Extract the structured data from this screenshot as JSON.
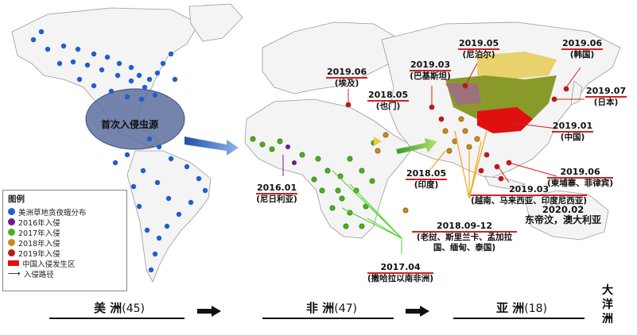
{
  "origin_label": "首次入侵虫源",
  "labels": {
    "egypt": {
      "date": "2019.06",
      "country": "(埃及)"
    },
    "yemen": {
      "date": "2018.05",
      "country": "(也门)"
    },
    "pakistan": {
      "date": "2019.03",
      "country": "(巴基斯坦)"
    },
    "nepal": {
      "date": "2019.05",
      "country": "(尼泊尔)"
    },
    "korea": {
      "date": "2019.06",
      "country": "(韩国)"
    },
    "japan": {
      "date": "2019.07",
      "country": "(日本)"
    },
    "china": {
      "date": "2019.01",
      "country": "(中国)"
    },
    "cambodia": {
      "date": "2019.06",
      "country": "(柬埔寨、菲律宾)"
    },
    "vietnam": {
      "date": "2019.03",
      "country": "(越南、马来西亚、印度尼西亚)"
    },
    "india": {
      "date": "2018.05",
      "country": "(印度)"
    },
    "laos": {
      "date": "2018.09-12",
      "country": "(老挝、斯里兰卡、孟加拉国、缅甸、泰国)"
    },
    "nigeria": {
      "date": "2016.01",
      "country": "(尼日利亚)"
    },
    "subsahara": {
      "date": "2017.04",
      "country": "(撒哈拉以南非洲)"
    },
    "timor": {
      "date": "2020.02",
      "country": "东帝汶，澳大利亚"
    }
  },
  "legend": {
    "title": "图例",
    "items": [
      {
        "label": "美洲草地贪夜蛾分布",
        "color": "#1f5fcf",
        "shape": "dot"
      },
      {
        "label": "2016年入侵",
        "color": "#6a1b9a",
        "shape": "dot"
      },
      {
        "label": "2017年入侵",
        "color": "#4caf1f",
        "shape": "dot"
      },
      {
        "label": "2018年入侵",
        "color": "#c98a1a",
        "shape": "dot"
      },
      {
        "label": "2019年入侵",
        "color": "#b71c1c",
        "shape": "dot"
      },
      {
        "label": "中国入侵发生区",
        "color": "#e01010",
        "shape": "rect"
      },
      {
        "label": "入侵路径",
        "color": "#111111",
        "shape": "arrow"
      }
    ]
  },
  "continents": {
    "americas": {
      "name": "美 洲",
      "count": "(45)"
    },
    "africa": {
      "name": "非 洲",
      "count": "(47)"
    },
    "asia": {
      "name": "亚 洲",
      "count": "(18)"
    },
    "oceania": {
      "name": "大洋洲"
    }
  },
  "colors": {
    "land": "#f4f4f4",
    "border": "#9a9a9a",
    "americas_dot": "#1f5fcf",
    "africa_dot": "#4caf1f",
    "asia_dot": "#c98a1a",
    "red": "#b71c1c",
    "china_fill": "#8a9a2a"
  }
}
